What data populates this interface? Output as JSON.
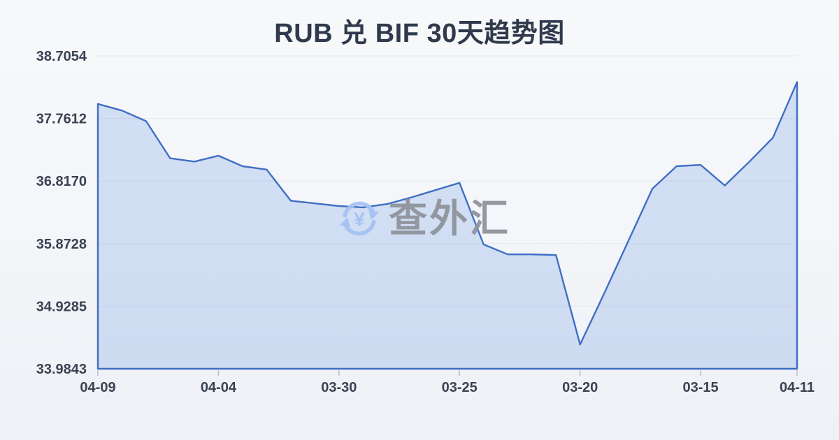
{
  "header": {
    "title": "RUB 兑 BIF 30天趋势图",
    "title_color": "#2f3a4c"
  },
  "watermark": {
    "text": "查外汇",
    "icon": "currency-exchange-icon",
    "icon_color": "#a5c1f4",
    "text_color": "#8d9199"
  },
  "chart_data": {
    "type": "area",
    "title": "RUB 兑 BIF 30天趋势图",
    "x_tick_labels": [
      "04-09",
      "04-04",
      "03-30",
      "03-25",
      "03-20",
      "03-15",
      "04-11"
    ],
    "x_tick_indices": [
      0,
      5,
      10,
      15,
      20,
      25,
      29
    ],
    "y_tick_labels": [
      "38.7054",
      "37.7612",
      "36.8170",
      "35.8728",
      "34.9285",
      "33.9843"
    ],
    "ylim": [
      33.9843,
      38.7054
    ],
    "values": [
      37.98,
      37.88,
      37.72,
      37.16,
      37.11,
      37.2,
      37.04,
      36.99,
      36.52,
      36.48,
      36.44,
      36.42,
      36.47,
      36.57,
      36.68,
      36.79,
      35.86,
      35.71,
      35.71,
      35.7,
      34.35,
      35.12,
      35.91,
      36.7,
      37.04,
      37.06,
      36.75,
      37.1,
      37.47,
      38.31
    ],
    "grid": "horizontal-only",
    "legend": "none",
    "line_color": "#3f6fc4",
    "fill_color": "rgba(130, 165, 230, 0.30)",
    "grid_color": "#e4e7ed",
    "axis_label_color": "#3b4353",
    "tick_color": "#b7bdc9"
  }
}
